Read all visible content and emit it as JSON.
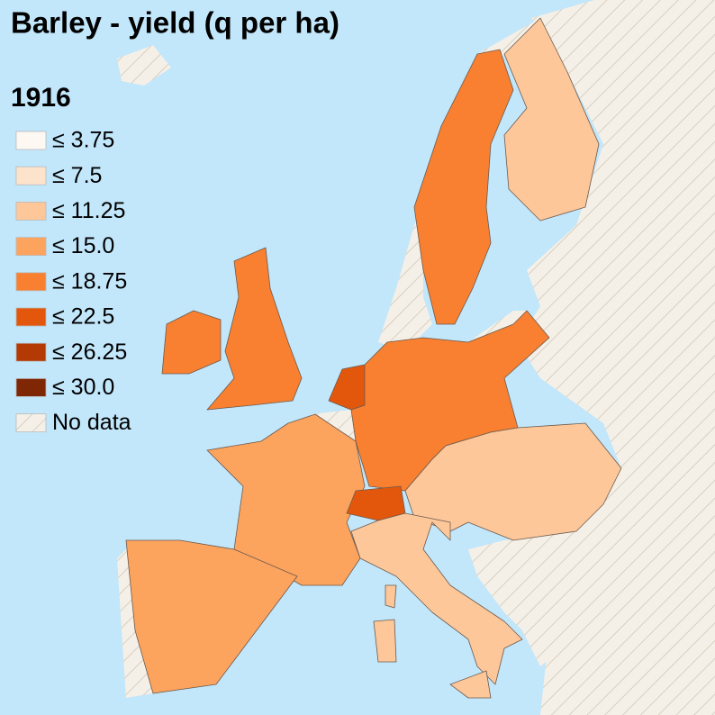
{
  "title": "Barley - yield (q per ha)",
  "year": "1916",
  "legend": [
    {
      "label": "≤ 3.75",
      "color": "#fef8f3"
    },
    {
      "label": "≤ 7.5",
      "color": "#fde3cc"
    },
    {
      "label": "≤ 11.25",
      "color": "#fdc79a"
    },
    {
      "label": "≤ 15.0",
      "color": "#fca35e"
    },
    {
      "label": "≤ 18.75",
      "color": "#f88030"
    },
    {
      "label": "≤ 22.5",
      "color": "#e3570c"
    },
    {
      "label": "≤ 26.25",
      "color": "#b33a04"
    },
    {
      "label": "≤ 30.0",
      "color": "#7f2604"
    },
    {
      "label": "No data",
      "color": "url(#hatch)"
    }
  ]
}
